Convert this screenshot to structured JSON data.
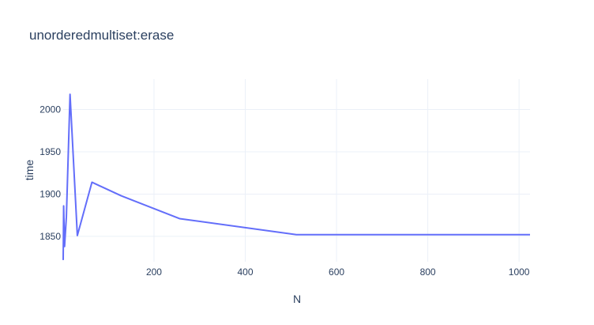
{
  "chart_data": {
    "type": "line",
    "title": "unorderedmultiset:erase",
    "xlabel": "N",
    "ylabel": "time",
    "xlim": [
      1,
      1024
    ],
    "ylim": [
      1820,
      2036
    ],
    "xticks": [
      200,
      400,
      600,
      800,
      1000
    ],
    "yticks": [
      1850,
      1900,
      1950,
      2000
    ],
    "grid": true,
    "legend": "none",
    "line_color": "#636efa",
    "series": [
      {
        "x": [
          1,
          2,
          4,
          8,
          16,
          32,
          64,
          128,
          256,
          512,
          1024
        ],
        "y": [
          1822,
          1886,
          1838,
          1873,
          2018,
          1851,
          1914,
          1898,
          1871,
          1852,
          1852
        ]
      }
    ]
  }
}
